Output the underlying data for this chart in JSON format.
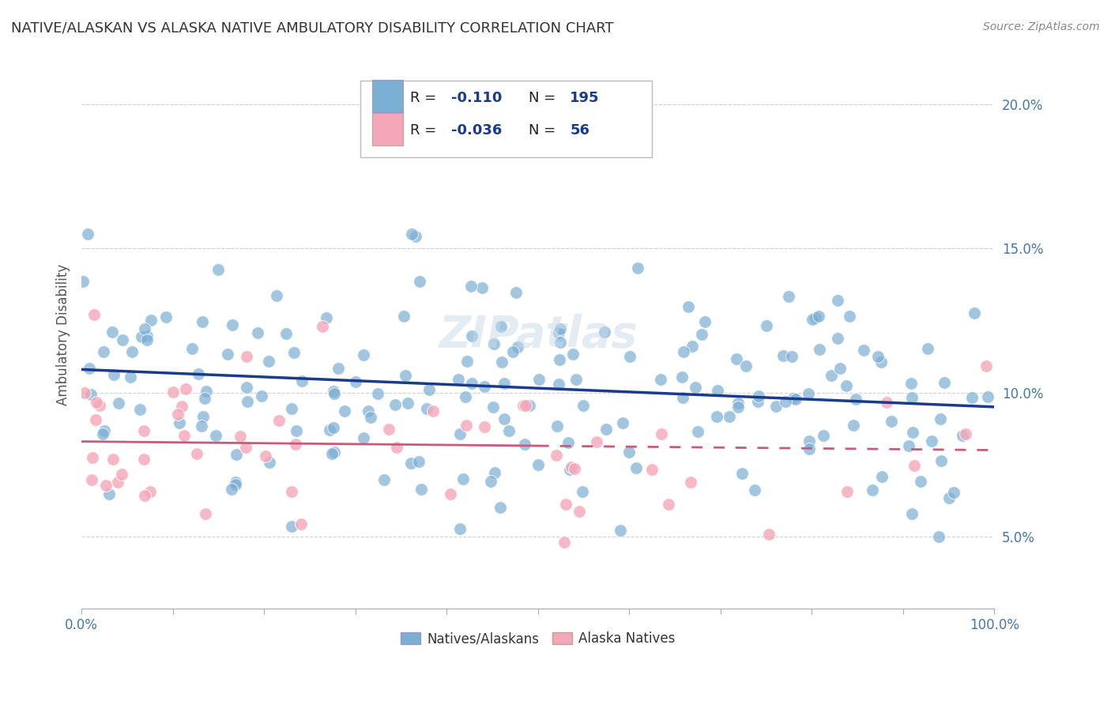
{
  "title": "NATIVE/ALASKAN VS ALASKA NATIVE AMBULATORY DISABILITY CORRELATION CHART",
  "source": "Source: ZipAtlas.com",
  "ylabel": "Ambulatory Disability",
  "xlim": [
    0,
    100
  ],
  "ylim": [
    2.5,
    21.5
  ],
  "yticks": [
    5.0,
    10.0,
    15.0,
    20.0
  ],
  "yticklabels": [
    "5.0%",
    "10.0%",
    "15.0%",
    "20.0%"
  ],
  "blue_color": "#7bafd4",
  "pink_color": "#f4a7b9",
  "blue_line_color": "#1a3a8c",
  "pink_line_color": "#c85a7a",
  "grid_color": "#cccccc",
  "background_color": "#ffffff",
  "axis_label_color": "#4477aa",
  "watermark": "ZIPatlas",
  "blue_trendline_y_start": 10.8,
  "blue_trendline_y_end": 9.5,
  "pink_trendline_y_start": 8.3,
  "pink_trendline_y_end": 8.0,
  "seed": 7
}
